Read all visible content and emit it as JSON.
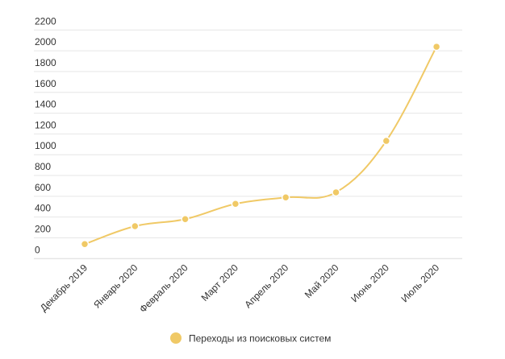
{
  "chart_data": {
    "type": "line",
    "title": "",
    "xlabel": "",
    "ylabel": "",
    "categories": [
      "Декабрь 2019",
      "Январь 2020",
      "Февраль 2020",
      "Март 2020",
      "Апрель 2020",
      "Май 2020",
      "Июнь 2020",
      "Июль 2020"
    ],
    "series": [
      {
        "name": "Переходы из поисковых систем",
        "color": "#f0c966",
        "values": [
          140,
          312,
          380,
          527,
          589,
          638,
          1133,
          2039
        ]
      }
    ],
    "ylim": [
      0,
      2200
    ],
    "yticks": [
      0,
      200,
      400,
      600,
      800,
      1000,
      1200,
      1400,
      1600,
      1800,
      2000,
      2200
    ],
    "grid": true,
    "legend": "bottom"
  }
}
